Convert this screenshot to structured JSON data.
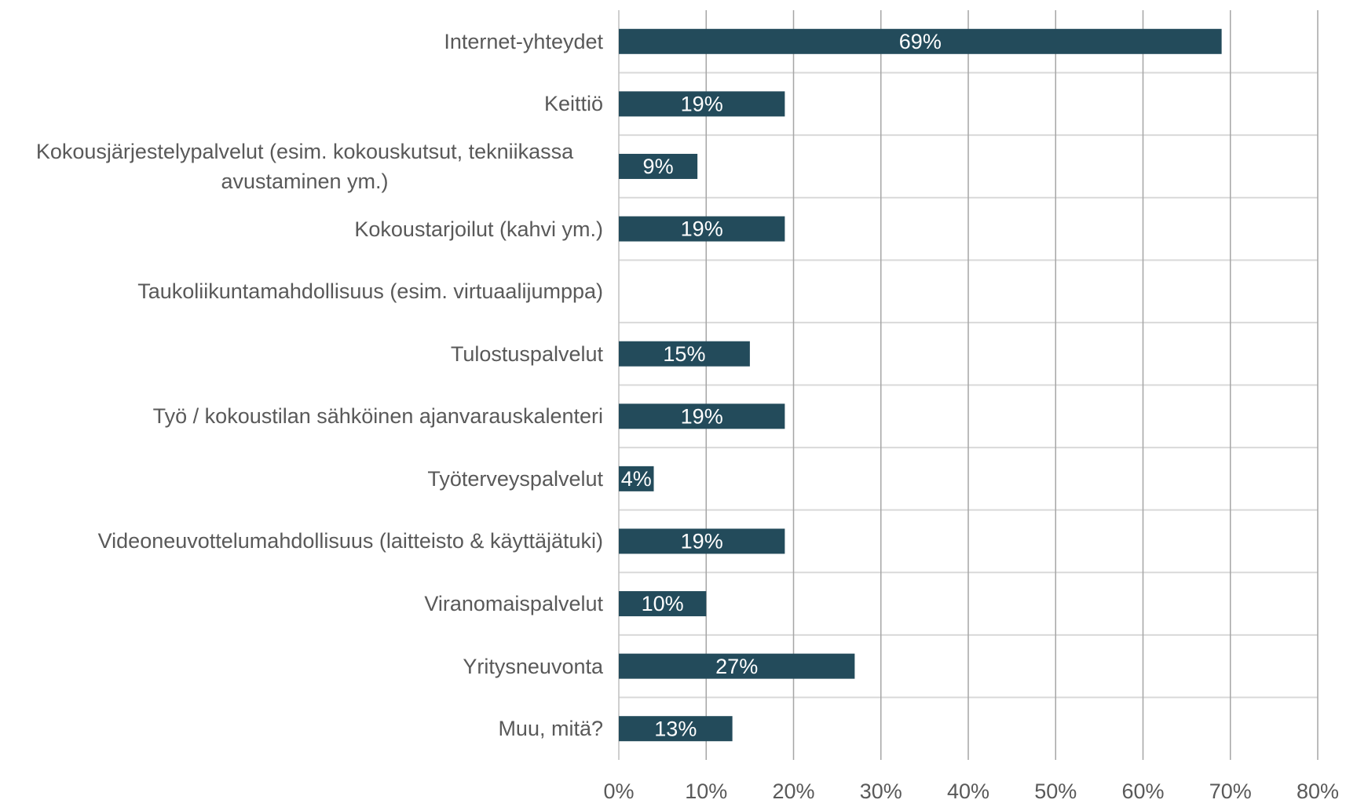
{
  "chart_data": {
    "type": "barh",
    "categories": [
      "Internet-yhteydet",
      "Keittiö",
      "Kokousjärjestelypalvelut (esim. kokouskutsut, tekniikassa avustaminen ym.)",
      "Kokoustarjoilut (kahvi ym.)",
      "Taukoliikuntamahdollisuus (esim. virtuaalijumppa)",
      "Tulostuspalvelut",
      "Työ / kokoustilan sähköinen ajanvarauskalenteri",
      "Työterveyspalvelut",
      "Videoneuvottelumahdollisuus (laitteisto & käyttäjätuki)",
      "Viranomaispalvelut",
      "Yritysneuvonta",
      "Muu, mitä?"
    ],
    "values": [
      69,
      19,
      9,
      19,
      null,
      15,
      19,
      4,
      19,
      10,
      27,
      13
    ],
    "value_labels": [
      "69%",
      "19%",
      "9%",
      "19%",
      null,
      "15%",
      "19%",
      "4%",
      "19%",
      "10%",
      "27%",
      "13%"
    ],
    "color": "#234b5b",
    "xlim": [
      0,
      80
    ],
    "xticks": [
      {
        "value": 0,
        "label": "0%"
      },
      {
        "value": 10,
        "label": "10%"
      },
      {
        "value": 20,
        "label": "20%"
      },
      {
        "value": 30,
        "label": "30%"
      },
      {
        "value": 40,
        "label": "40%"
      },
      {
        "value": 50,
        "label": "50%"
      },
      {
        "value": 60,
        "label": "60%"
      },
      {
        "value": 70,
        "label": "70%"
      },
      {
        "value": 80,
        "label": "80%"
      }
    ],
    "grid": true
  }
}
